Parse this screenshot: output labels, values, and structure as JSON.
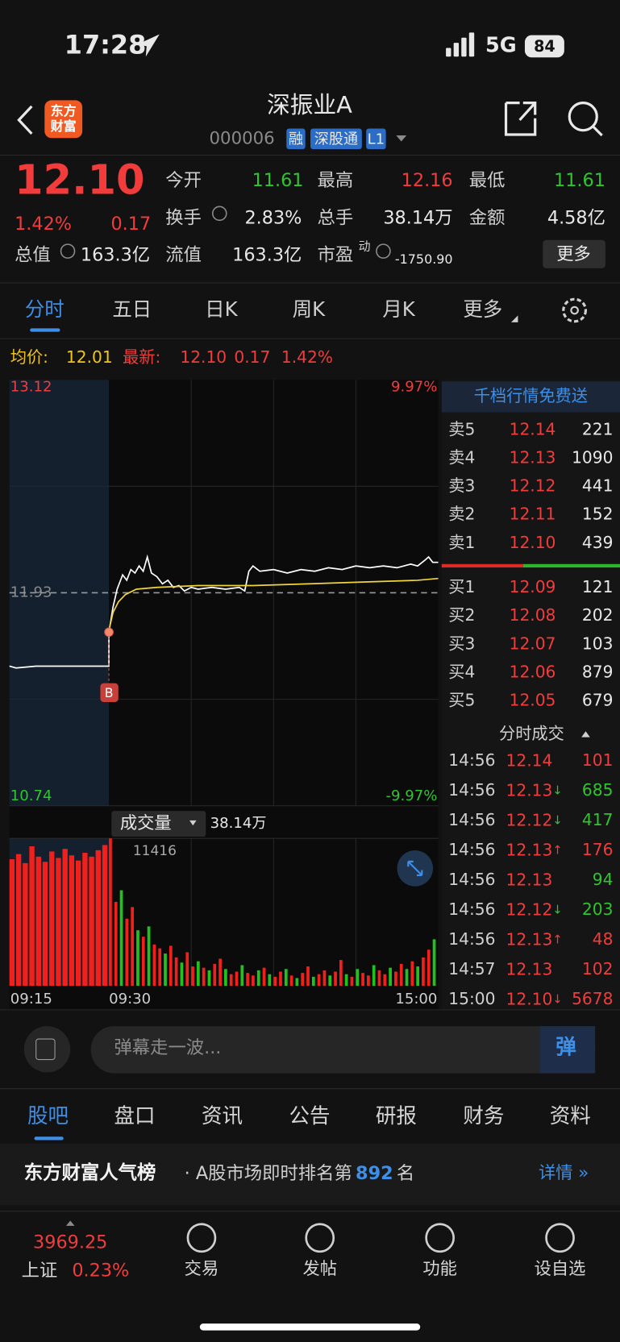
{
  "status_bar": {
    "time": "17:28",
    "network": "5G",
    "battery": "84"
  },
  "header": {
    "logo_lines": [
      "东方",
      "财富"
    ],
    "title": "深振业A",
    "code": "000006",
    "badges": [
      "融",
      "深股通",
      "L1"
    ]
  },
  "quote": {
    "price": "12.10",
    "change_pct": "1.42%",
    "change": "0.17",
    "stats": [
      {
        "label": "今开",
        "value": "11.61",
        "color": "#2fc52f"
      },
      {
        "label": "最高",
        "value": "12.16",
        "color": "#f23c3c"
      },
      {
        "label": "最低",
        "value": "11.61",
        "color": "#2fc52f"
      },
      {
        "label": "换手",
        "value": "2.83%"
      },
      {
        "label": "总手",
        "value": "38.14万"
      },
      {
        "label": "金额",
        "value": "4.58亿"
      },
      {
        "label": "总值",
        "value": "163.3亿"
      },
      {
        "label": "流值",
        "value": "163.3亿"
      },
      {
        "label": "市盈",
        "label_sup": "动",
        "value": "-1750.90"
      }
    ],
    "more_button": "更多"
  },
  "chart_tabs": {
    "items": [
      "分时",
      "五日",
      "日K",
      "周K",
      "月K",
      "更多"
    ],
    "active": 0
  },
  "info_line": {
    "avg_label": "均价:",
    "avg": "12.01",
    "latest_label": "最新:",
    "latest": "12.10",
    "change": "0.17",
    "change_pct": "1.42%"
  },
  "chart_data": {
    "type": "line",
    "xlim": [
      0,
      255
    ],
    "xticks": [
      {
        "value": 0,
        "label": "09:15"
      },
      {
        "value": 15,
        "label": "09:30"
      },
      {
        "value": 255,
        "label": "15:00"
      }
    ],
    "ylim": [
      10.74,
      13.12
    ],
    "yticks": [
      13.12,
      11.93,
      10.74
    ],
    "pct_labels": [
      "9.97%",
      "-9.97%"
    ],
    "marker_label": "B",
    "series": [
      {
        "color": "#ffffff",
        "x": [
          0,
          1,
          4,
          15,
          15,
          18,
          21,
          25,
          28,
          31,
          34,
          37,
          40,
          43,
          46,
          50,
          54,
          58,
          62,
          66,
          70,
          75,
          80,
          90,
          100,
          110,
          114,
          117,
          120,
          125,
          135,
          145,
          155,
          165,
          175,
          185,
          195,
          205,
          215,
          225,
          235,
          240,
          245,
          248,
          251,
          255
        ],
        "values": [
          11.52,
          11.51,
          11.52,
          11.52,
          11.71,
          11.85,
          11.95,
          12.03,
          12.0,
          12.06,
          12.04,
          12.08,
          12.05,
          12.13,
          12.04,
          12.02,
          11.98,
          12.0,
          11.96,
          11.97,
          11.94,
          11.96,
          11.95,
          11.96,
          11.95,
          11.96,
          11.94,
          12.05,
          12.08,
          12.05,
          12.06,
          12.04,
          12.06,
          12.05,
          12.07,
          12.06,
          12.08,
          12.07,
          12.08,
          12.07,
          12.09,
          12.08,
          12.11,
          12.13,
          12.1,
          12.1
        ]
      },
      {
        "color": "#f0d63c",
        "x": [
          15,
          18,
          22,
          27,
          35,
          50,
          80,
          120,
          160,
          200,
          240,
          255
        ],
        "values": [
          11.72,
          11.82,
          11.88,
          11.92,
          11.95,
          11.96,
          11.97,
          11.97,
          11.98,
          11.99,
          12.0,
          12.01
        ]
      }
    ],
    "volume": {
      "title": "成交量",
      "total": "38.14万",
      "ylim": [
        0,
        11416
      ],
      "up_color": "#f0201c",
      "down_color": "#22c11f",
      "x": [
        0,
        1,
        2,
        3,
        4,
        5,
        6,
        7,
        8,
        9,
        10,
        11,
        12,
        13,
        14,
        15,
        19,
        23,
        27,
        31,
        35,
        39,
        43,
        47,
        51,
        55,
        59,
        63,
        67,
        71,
        75,
        79,
        83,
        87,
        91,
        95,
        99,
        103,
        107,
        111,
        115,
        119,
        123,
        127,
        131,
        135,
        139,
        143,
        147,
        151,
        155,
        159,
        163,
        167,
        171,
        175,
        179,
        183,
        187,
        191,
        195,
        199,
        203,
        207,
        211,
        215,
        219,
        223,
        227,
        231,
        235,
        239,
        243,
        247,
        251
      ],
      "values": [
        9800,
        10200,
        9500,
        10800,
        10000,
        9600,
        10400,
        9900,
        10600,
        10100,
        9700,
        10300,
        10000,
        10500,
        10900,
        11416,
        6500,
        7400,
        5200,
        6100,
        4300,
        3800,
        4600,
        3200,
        2900,
        2500,
        3100,
        2200,
        1800,
        2600,
        1500,
        1900,
        1400,
        1200,
        1700,
        2100,
        1300,
        900,
        1100,
        1600,
        1000,
        800,
        1200,
        1400,
        900,
        700,
        1100,
        1300,
        800,
        600,
        1000,
        1500,
        700,
        900,
        1200,
        800,
        1100,
        2000,
        900,
        700,
        1300,
        1000,
        800,
        1600,
        1200,
        900,
        1400,
        1100,
        1700,
        1300,
        1900,
        1500,
        2200,
        2800,
        3600
      ],
      "up": [
        true,
        true,
        true,
        true,
        true,
        true,
        true,
        true,
        true,
        true,
        true,
        true,
        true,
        true,
        true,
        true,
        true,
        false,
        true,
        true,
        false,
        true,
        false,
        true,
        true,
        false,
        true,
        true,
        false,
        true,
        true,
        false,
        true,
        false,
        true,
        true,
        false,
        true,
        true,
        false,
        true,
        true,
        false,
        true,
        false,
        true,
        true,
        false,
        true,
        false,
        true,
        true,
        false,
        true,
        true,
        false,
        true,
        true,
        false,
        true,
        false,
        true,
        true,
        false,
        true,
        true,
        false,
        true,
        true,
        false,
        true,
        false,
        true,
        true,
        false
      ]
    }
  },
  "order_book": {
    "banner": "千档行情免费送",
    "asks": [
      {
        "label": "卖5",
        "price": "12.14",
        "qty": "221"
      },
      {
        "label": "卖4",
        "price": "12.13",
        "qty": "1090"
      },
      {
        "label": "卖3",
        "price": "12.12",
        "qty": "441"
      },
      {
        "label": "卖2",
        "price": "12.11",
        "qty": "152"
      },
      {
        "label": "卖1",
        "price": "12.10",
        "qty": "439"
      }
    ],
    "bids": [
      {
        "label": "买1",
        "price": "12.09",
        "qty": "121"
      },
      {
        "label": "买2",
        "price": "12.08",
        "qty": "202"
      },
      {
        "label": "买3",
        "price": "12.07",
        "qty": "103"
      },
      {
        "label": "买4",
        "price": "12.06",
        "qty": "879"
      },
      {
        "label": "买5",
        "price": "12.05",
        "qty": "679"
      }
    ]
  },
  "trades": {
    "title": "分时成交",
    "rows": [
      {
        "time": "14:56",
        "price": "12.14",
        "qty": "101",
        "color": "#f23c3c"
      },
      {
        "time": "14:56",
        "price": "12.13",
        "arrow": "↓",
        "qty": "685",
        "color": "#2fc52f"
      },
      {
        "time": "14:56",
        "price": "12.12",
        "arrow": "↓",
        "qty": "417",
        "color": "#2fc52f"
      },
      {
        "time": "14:56",
        "price": "12.13",
        "arrow": "↑",
        "qty": "176",
        "color": "#f23c3c"
      },
      {
        "time": "14:56",
        "price": "12.13",
        "qty": "94",
        "color": "#2fc52f"
      },
      {
        "time": "14:56",
        "price": "12.12",
        "arrow": "↓",
        "qty": "203",
        "color": "#2fc52f"
      },
      {
        "time": "14:56",
        "price": "12.13",
        "arrow": "↑",
        "qty": "48",
        "color": "#f23c3c"
      },
      {
        "time": "14:57",
        "price": "12.13",
        "qty": "102",
        "color": "#f23c3c"
      },
      {
        "time": "15:00",
        "price": "12.10",
        "arrow": "↓",
        "qty": "5678",
        "color": "#f23c3c"
      }
    ]
  },
  "comment_bar": {
    "placeholder": "弹幕走一波...",
    "button": "弹"
  },
  "section_tabs": {
    "items": [
      "股吧",
      "盘口",
      "资讯",
      "公告",
      "研报",
      "财务",
      "资料"
    ],
    "active": 0
  },
  "ranking": {
    "title": "东方财富人气榜",
    "prefix": "· A股市场即时排名第",
    "rank": "892",
    "suffix": "名",
    "link": "详情 »"
  },
  "nav": {
    "index": {
      "value": "3969.25",
      "name": "上证",
      "change": "0.23%"
    },
    "items": [
      "交易",
      "发帖",
      "功能",
      "设自选"
    ]
  }
}
